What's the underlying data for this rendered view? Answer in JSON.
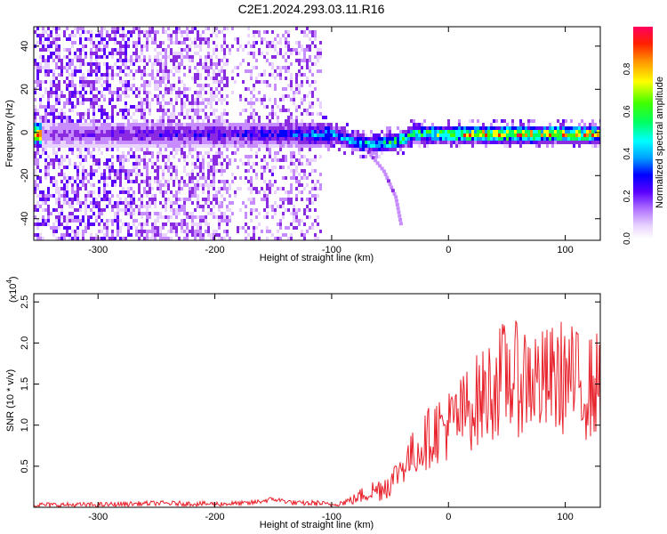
{
  "title": "C2E1.2024.293.03.11.R16",
  "colors": {
    "snr_line": "#e8202a",
    "spectrogram_palette": [
      "#ffffff",
      "#e8d4ff",
      "#c78cff",
      "#8a2be2",
      "#5a00ff",
      "#0000ff",
      "#00a0ff",
      "#00ffff",
      "#00ff60",
      "#40ff00",
      "#ffff00",
      "#ff9000",
      "#ff2000",
      "#ff0060"
    ]
  },
  "chart_data": [
    {
      "type": "heatmap",
      "title": "",
      "xlabel": "Height of straight line (km)",
      "ylabel": "Frequency (Hz)",
      "xlim": [
        -355,
        130
      ],
      "ylim": [
        -50,
        49
      ],
      "x_ticks": [
        -300,
        -200,
        -100,
        0,
        100
      ],
      "y_ticks": [
        -40,
        -20,
        0,
        20,
        40
      ],
      "grid": false,
      "colorbar": {
        "label": "Normalized spectral amplitude",
        "range": [
          0.0,
          1.0
        ],
        "ticks": [
          "0.0",
          "0.2",
          "0.4",
          "0.6",
          "0.8"
        ]
      },
      "features": {
        "main_band_center_hz": 0,
        "main_band_halfwidth_hz": 4,
        "band_amplitude_by_height": [
          {
            "x": -350,
            "amp": 0.25
          },
          {
            "x": -250,
            "amp": 0.35
          },
          {
            "x": -150,
            "amp": 0.4
          },
          {
            "x": -80,
            "amp": 0.6
          },
          {
            "x": -20,
            "amp": 0.8
          },
          {
            "x": 50,
            "amp": 1.0
          },
          {
            "x": 130,
            "amp": 0.95
          }
        ],
        "band_dip": {
          "x_range": [
            -100,
            -30
          ],
          "min_frequency_hz": -8
        },
        "branch_curve": [
          {
            "x": -70,
            "y": -8
          },
          {
            "x": -55,
            "y": -18
          },
          {
            "x": -45,
            "y": -30
          },
          {
            "x": -40,
            "y": -44
          }
        ]
      }
    },
    {
      "type": "line",
      "title": "",
      "xlabel": "Height of straight line (km)",
      "ylabel": "SNR (10 * v/v)",
      "y_multiplier_label": "(x10",
      "y_multiplier_exponent": "4",
      "xlim": [
        -355,
        130
      ],
      "ylim": [
        0,
        2.6
      ],
      "x_ticks": [
        -300,
        -200,
        -100,
        0,
        100
      ],
      "y_ticks": [
        "0.5",
        "1.0",
        "1.5",
        "2.0",
        "2.5"
      ],
      "grid": false,
      "series": [
        {
          "x": [
            -355,
            -300,
            -250,
            -200,
            -170,
            -150,
            -130,
            -110,
            -100,
            -90,
            -80,
            -70,
            -60,
            -50,
            -40,
            -30,
            -20,
            -10,
            0,
            10,
            20,
            30,
            40,
            50,
            60,
            70,
            80,
            90,
            100,
            110,
            120,
            130
          ],
          "y": [
            0.03,
            0.03,
            0.05,
            0.04,
            0.05,
            0.1,
            0.05,
            0.05,
            0.03,
            0.06,
            0.1,
            0.18,
            0.22,
            0.3,
            0.5,
            0.65,
            0.8,
            0.95,
            1.0,
            1.1,
            1.25,
            1.35,
            1.5,
            1.6,
            1.55,
            1.6,
            1.5,
            1.55,
            1.6,
            1.5,
            1.45,
            1.5
          ]
        }
      ]
    }
  ]
}
